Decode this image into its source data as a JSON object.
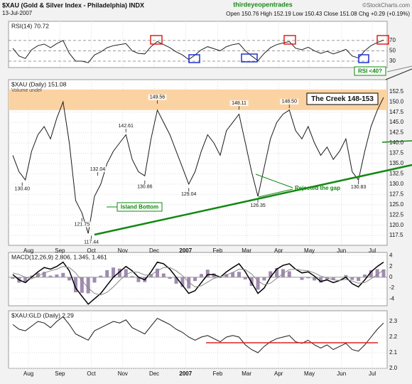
{
  "header": {
    "title": "$XAU (Gold & Silver Index - Philadelphia) INDX",
    "date": "13-Jul-2007",
    "author": "thirdeyeopentrades",
    "source": "©StockCharts.com",
    "ohlc": "Open 150.76  High 152.19  Low 150.43  Close 151.08  Chg +0.29 (+0.19%)"
  },
  "annotations": {
    "creek": "The Creek 148-153",
    "island": "Island Bottom",
    "gap": "Rejected the gap",
    "rsi": "RSI <40?"
  },
  "chart_data": [
    {
      "type": "line",
      "label": "RSI(14) 70.72",
      "xlim": [
        0,
        59
      ],
      "ylim": [
        17.6,
        107
      ],
      "yticks": [
        30,
        50,
        70
      ],
      "grid": true,
      "series": [
        {
          "name": "RSI(14)",
          "color": "#222222",
          "values": [
            55,
            40,
            35,
            52,
            60,
            63,
            56,
            64,
            70,
            45,
            30,
            30,
            27,
            42,
            48,
            56,
            60,
            62,
            64,
            50,
            45,
            44,
            58,
            68,
            62,
            56,
            48,
            42,
            33,
            42,
            52,
            58,
            54,
            50,
            58,
            62,
            64,
            50,
            40,
            31,
            45,
            56,
            62,
            65,
            68,
            55,
            52,
            57,
            50,
            45,
            49,
            44,
            48,
            53,
            40,
            36,
            50,
            60,
            66,
            70.72
          ]
        }
      ]
    },
    {
      "type": "line",
      "label": "$XAU (Daily) 151.08",
      "sublabel": "Volume undef",
      "xlim": [
        0,
        59
      ],
      "ylim": [
        115.1,
        155.4
      ],
      "yticks": [
        117.5,
        {
          "value": 120,
          "label": "120.0"
        },
        122.5,
        {
          "value": 125,
          "label": "125.0"
        },
        127.5,
        {
          "value": 130,
          "label": "130.0"
        },
        132.5,
        {
          "value": 135,
          "label": "135.0"
        },
        137.5,
        {
          "value": 140,
          "label": "140.0"
        },
        142.5,
        {
          "value": 145,
          "label": "145.0"
        },
        147.5,
        {
          "value": 150,
          "label": "150.0"
        },
        152.5
      ],
      "xticks": [
        {
          "value": 2.5,
          "label": "Aug"
        },
        {
          "value": 7.5,
          "label": "Sep"
        },
        {
          "value": 12.5,
          "label": "Oct"
        },
        {
          "value": 17.5,
          "label": "Nov"
        },
        {
          "value": 22.5,
          "label": "Dec"
        },
        {
          "value": 27.5,
          "label": "2007"
        },
        {
          "value": 32.6,
          "label": "Feb"
        },
        {
          "value": 37.2,
          "label": "Mar"
        },
        {
          "value": 42.3,
          "label": "Apr"
        },
        {
          "value": 47.2,
          "label": "May"
        },
        {
          "value": 52.3,
          "label": "Jun"
        },
        {
          "value": 57.2,
          "label": "Jul"
        }
      ],
      "grid": true,
      "band": [
        148,
        153
      ],
      "band_color": "#fbd3a3",
      "series": [
        {
          "name": "$XAU",
          "color": "#1a1a1a",
          "values": [
            137,
            133,
            131,
            138,
            142,
            144,
            141,
            146,
            150,
            140,
            126,
            123,
            118,
            127,
            130,
            135,
            138,
            140,
            142,
            136,
            133,
            132,
            141,
            148,
            145,
            142,
            138,
            134,
            130,
            133,
            138,
            142,
            140,
            137,
            143,
            145,
            147,
            140,
            133,
            127,
            134,
            141,
            145,
            147,
            148,
            143,
            141,
            144,
            140,
            137,
            139,
            136,
            138,
            141,
            133,
            131,
            138,
            144,
            148,
            151.08
          ]
        }
      ],
      "price_labels": [
        {
          "x": 1.5,
          "value": 130.4,
          "label": "130.40"
        },
        {
          "x": 11,
          "value": 121.75,
          "label": "121.75"
        },
        {
          "x": 12.5,
          "value": 117.44,
          "label": "117.44"
        },
        {
          "x": 13.5,
          "value": 132.04,
          "label": "132.04"
        },
        {
          "x": 18,
          "value": 142.61,
          "label": "142.61"
        },
        {
          "x": 21,
          "value": 130.86,
          "label": "130.86"
        },
        {
          "x": 23,
          "value": 149.56,
          "label": "149.56"
        },
        {
          "x": 28,
          "value": 129.04,
          "label": "129.04"
        },
        {
          "x": 36,
          "value": 148.11,
          "label": "148.11"
        },
        {
          "x": 39,
          "value": 126.35,
          "label": "126.35"
        },
        {
          "x": 44,
          "value": 148.5,
          "label": "148.50"
        },
        {
          "x": 55,
          "value": 130.83,
          "label": "130.83"
        }
      ]
    },
    {
      "type": "macd",
      "label": "MACD(12,26,9) 2.806, 1.345, 1.461",
      "xlim": [
        0,
        59
      ],
      "ylim": [
        -5.3,
        4.6
      ],
      "yticks": [
        -4,
        -2,
        0,
        2,
        4
      ],
      "grid": true,
      "series": [
        {
          "name": "MACD",
          "color": "#000000",
          "values": [
            0.5,
            -0.5,
            -1,
            0,
            1,
            1.8,
            1.5,
            2,
            2.8,
            1.2,
            -2,
            -3.5,
            -5,
            -4,
            -3,
            -1.5,
            0,
            1,
            2,
            1.2,
            0,
            -0.5,
            1,
            2.8,
            2.5,
            1.5,
            0,
            -1.5,
            -3,
            -2.5,
            -1,
            0.5,
            0.5,
            0,
            1,
            1.8,
            2.5,
            1,
            -1,
            -3,
            -2,
            0,
            1.5,
            2.2,
            2.5,
            1.5,
            0.8,
            1,
            0.2,
            -0.8,
            -0.5,
            -1,
            -0.6,
            0,
            -1.2,
            -1.8,
            -0.5,
            1,
            2,
            2.806
          ]
        },
        {
          "name": "Signal",
          "color": "#888888",
          "values": [
            0.8,
            0.5,
            0,
            -0.3,
            0.2,
            0.8,
            1.2,
            1.5,
            2,
            1.8,
            0.8,
            -0.6,
            -2,
            -3,
            -3.3,
            -2.8,
            -1.8,
            -0.6,
            0.5,
            1,
            0.9,
            0.4,
            0.4,
            1.2,
            1.8,
            1.8,
            1.2,
            0.3,
            -0.9,
            -1.8,
            -1.6,
            -0.9,
            -0.2,
            0.1,
            0.4,
            0.9,
            1.5,
            1.4,
            0.6,
            -0.7,
            -1.4,
            -1.1,
            -0.2,
            0.7,
            1.4,
            1.5,
            1.3,
            1.2,
            0.8,
            0.2,
            -0.1,
            -0.5,
            -0.6,
            -0.4,
            -0.7,
            -1.1,
            -1,
            -0.3,
            0.5,
            1.345
          ]
        }
      ],
      "histogram": [
        -0.3,
        -1,
        -1,
        0.3,
        0.8,
        1,
        0.3,
        0.5,
        0.8,
        -0.6,
        -2.8,
        -2.9,
        -3,
        -1,
        0.3,
        1.3,
        1.8,
        1.6,
        1.5,
        0.2,
        -0.9,
        -0.9,
        0.6,
        1.6,
        0.7,
        -0.3,
        -1.2,
        -1.8,
        -2.1,
        -0.7,
        0.6,
        1.4,
        0.7,
        -0.1,
        0.6,
        0.9,
        1,
        -0.4,
        -1.6,
        -2.3,
        -0.6,
        1.1,
        1.7,
        1.5,
        1.1,
        0,
        -0.5,
        -0.2,
        -0.6,
        -1,
        -0.4,
        -0.5,
        0,
        0.4,
        -0.5,
        -0.7,
        0.5,
        1.3,
        1.5,
        1.461
      ],
      "histogram_color": "#a08cb0"
    },
    {
      "type": "line",
      "label": "$XAU:GLD (Daily) 2.29",
      "xlim": [
        0,
        59
      ],
      "ylim": [
        2.0,
        2.368
      ],
      "yticks": [
        {
          "value": 2,
          "label": "2.0"
        },
        2.1,
        2.2,
        2.3
      ],
      "grid": true,
      "xticks": [
        {
          "value": 2.5,
          "label": "Aug"
        },
        {
          "value": 7.5,
          "label": "Sep"
        },
        {
          "value": 12.5,
          "label": "Oct"
        },
        {
          "value": 17.5,
          "label": "Nov"
        },
        {
          "value": 22.5,
          "label": "Dec"
        },
        {
          "value": 27.5,
          "label": "2007"
        },
        {
          "value": 32.6,
          "label": "Feb"
        },
        {
          "value": 37.2,
          "label": "Mar"
        },
        {
          "value": 42.3,
          "label": "Apr"
        },
        {
          "value": 47.2,
          "label": "May"
        },
        {
          "value": 52.3,
          "label": "Jun"
        },
        {
          "value": 57.2,
          "label": "Jul"
        }
      ],
      "series": [
        {
          "name": "$XAU:GLD",
          "color": "#1a1a1a",
          "values": [
            2.28,
            2.25,
            2.24,
            2.27,
            2.3,
            2.29,
            2.26,
            2.3,
            2.33,
            2.28,
            2.22,
            2.2,
            2.18,
            2.24,
            2.26,
            2.28,
            2.3,
            2.29,
            2.31,
            2.26,
            2.24,
            2.22,
            2.27,
            2.32,
            2.3,
            2.28,
            2.25,
            2.23,
            2.2,
            2.18,
            2.2,
            2.21,
            2.19,
            2.17,
            2.2,
            2.21,
            2.2,
            2.15,
            2.12,
            2.1,
            2.14,
            2.17,
            2.19,
            2.2,
            2.21,
            2.17,
            2.16,
            2.18,
            2.15,
            2.13,
            2.15,
            2.12,
            2.14,
            2.16,
            2.12,
            2.11,
            2.15,
            2.2,
            2.25,
            2.29
          ]
        }
      ]
    }
  ]
}
